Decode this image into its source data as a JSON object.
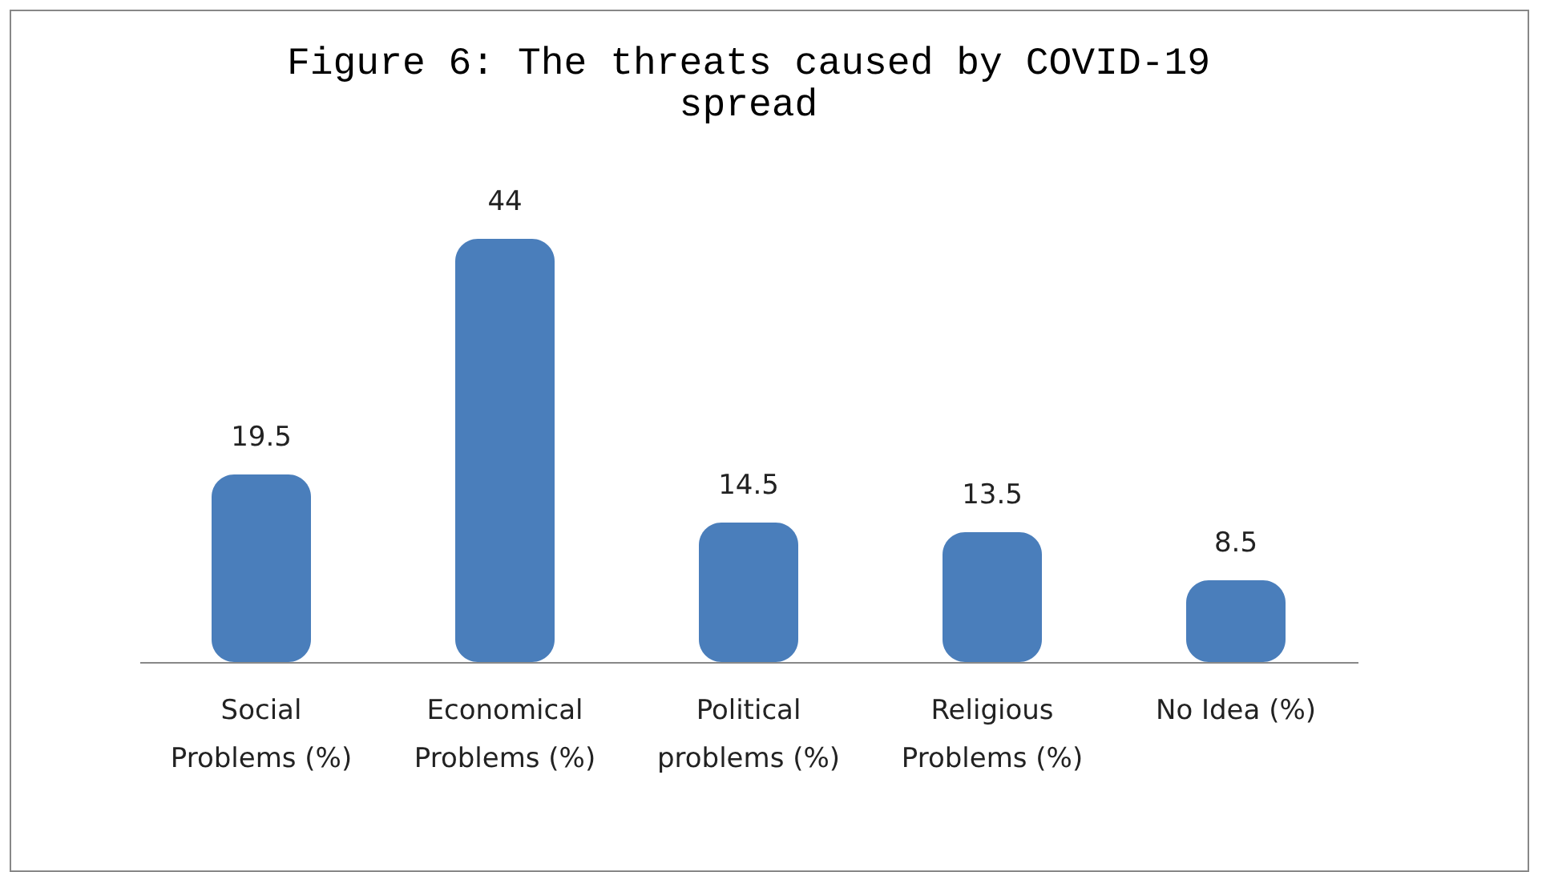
{
  "chart_data": {
    "type": "bar",
    "title": "Figure 6: The threats caused by COVID-19 spread",
    "categories": [
      "Social Problems (%)",
      "Economical Problems (%)",
      "Political problems (%)",
      "Religious Problems (%)",
      "No Idea (%)"
    ],
    "values": [
      19.5,
      44,
      14.5,
      13.5,
      8.5
    ],
    "color": "#4a7ebb",
    "data_labels": true
  }
}
